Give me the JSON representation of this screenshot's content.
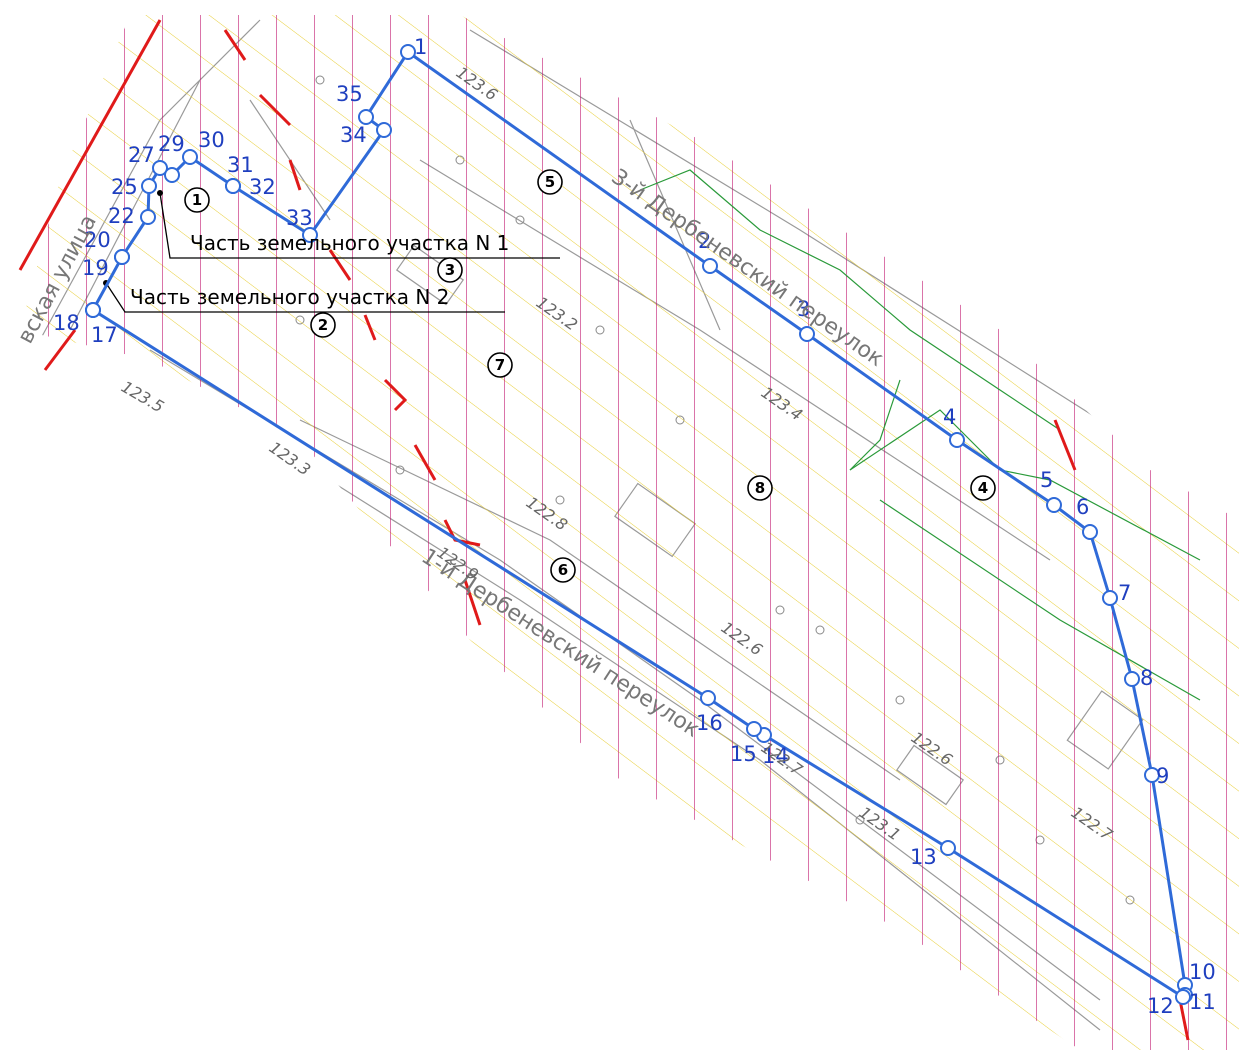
{
  "points": [
    "1",
    "2",
    "3",
    "4",
    "5",
    "6",
    "7",
    "8",
    "9",
    "10",
    "11",
    "12",
    "13",
    "14",
    "15",
    "16",
    "17",
    "18",
    "19",
    "20",
    "22",
    "25",
    "27",
    "29",
    "30",
    "31",
    "32",
    "33",
    "34",
    "35"
  ],
  "zones": [
    "1",
    "2",
    "3",
    "4",
    "5",
    "6",
    "7",
    "8"
  ],
  "callouts": [
    "Часть земельного участка N 1",
    "Часть земельного участка N 2"
  ],
  "streets": [
    "3-й Дербеневский переулок",
    "1-й Дербеневский переулок",
    "вская улица"
  ],
  "elevations": [
    "123.6",
    "123.2",
    "123.4",
    "123.3",
    "123.5",
    "122.8",
    "122.9",
    "122.6",
    "122.7",
    "123.1",
    "122.6",
    "122.7"
  ]
}
